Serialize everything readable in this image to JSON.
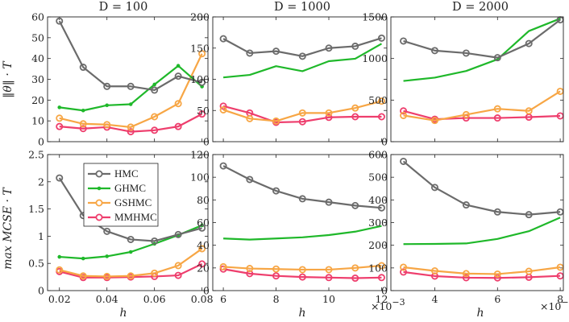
{
  "figure": {
    "method_colors": {
      "HMC": "#6b6b6b",
      "GHMC": "#1fb82a",
      "GSHMC": "#f7a645",
      "MMHMC": "#ee3e6d"
    },
    "legend_entries": [
      "HMC",
      "GHMC",
      "GSHMC",
      "MMHMC"
    ],
    "column_titles": [
      "D = 100",
      "D = 1000",
      "D = 2000"
    ],
    "row_ylabels": [
      "‖θ‖ · T",
      "max MCSE · T"
    ],
    "xlabel": "h",
    "x_exponent_label": "×10",
    "x_exponent_power": "−3"
  },
  "chart_data": [
    {
      "type": "line",
      "id": "top-d100",
      "title": "D = 100",
      "xlabel": "",
      "ylabel": "‖θ‖ · T",
      "xlim": [
        0.015,
        0.0825
      ],
      "ylim": [
        0,
        60
      ],
      "xticks": [
        0.02,
        0.04,
        0.06,
        0.08
      ],
      "xtick_labels": [],
      "yticks": [
        0,
        10,
        20,
        30,
        40,
        50,
        60
      ],
      "ytick_labels": [
        "0",
        "10",
        "20",
        "30",
        "40",
        "50",
        "60"
      ],
      "x": [
        0.02,
        0.03,
        0.04,
        0.05,
        0.06,
        0.07,
        0.08
      ],
      "series": [
        {
          "name": "HMC",
          "values": [
            58.0,
            35.8,
            26.6,
            26.6,
            24.8,
            31.5,
            28.5
          ]
        },
        {
          "name": "GHMC",
          "values": [
            16.5,
            15.0,
            17.5,
            18.0,
            27.5,
            36.5,
            26.5
          ]
        },
        {
          "name": "GSHMC",
          "values": [
            11.3,
            8.6,
            8.2,
            7.0,
            12.0,
            18.3,
            42.3
          ]
        },
        {
          "name": "MMHMC",
          "values": [
            7.3,
            6.3,
            7.0,
            4.8,
            5.5,
            7.3,
            13.3
          ]
        }
      ]
    },
    {
      "type": "line",
      "id": "top-d1000",
      "title": "D = 1000",
      "xlabel": "",
      "ylabel": "",
      "xlim": [
        5.6,
        12.2
      ],
      "ylim": [
        0,
        200
      ],
      "xticks": [
        6,
        8,
        10,
        12
      ],
      "xtick_labels": [],
      "yticks": [
        0,
        50,
        100,
        150,
        200
      ],
      "ytick_labels": [
        "0",
        "50",
        "100",
        "150",
        "200"
      ],
      "x": [
        6,
        7,
        8,
        9,
        10,
        11,
        12
      ],
      "series": [
        {
          "name": "HMC",
          "values": [
            165,
            142,
            145,
            137,
            150,
            153,
            166
          ]
        },
        {
          "name": "GHMC",
          "values": [
            103,
            107,
            121,
            113,
            129,
            133,
            157
          ]
        },
        {
          "name": "GSHMC",
          "values": [
            51,
            37,
            33,
            46,
            46,
            54,
            65
          ]
        },
        {
          "name": "MMHMC",
          "values": [
            57,
            46,
            31,
            32,
            39,
            40,
            40
          ]
        }
      ]
    },
    {
      "type": "line",
      "id": "top-d2000",
      "title": "D = 2000",
      "xlabel": "",
      "ylabel": "",
      "xlim": [
        2.6,
        8.1
      ],
      "ylim": [
        0,
        1500
      ],
      "xticks": [
        4,
        6,
        8
      ],
      "xtick_labels": [],
      "yticks": [
        0,
        500,
        1000,
        1500
      ],
      "ytick_labels": [
        "0",
        "500",
        "1000",
        "1500"
      ],
      "x": [
        3,
        4,
        5,
        6,
        7,
        8
      ],
      "series": [
        {
          "name": "HMC",
          "values": [
            1210,
            1095,
            1065,
            1010,
            1180,
            1465
          ]
        },
        {
          "name": "GHMC",
          "values": [
            730,
            770,
            850,
            990,
            1330,
            1480
          ]
        },
        {
          "name": "GSHMC",
          "values": [
            315,
            255,
            325,
            395,
            370,
            605
          ]
        },
        {
          "name": "MMHMC",
          "values": [
            370,
            270,
            285,
            285,
            295,
            310
          ]
        }
      ]
    },
    {
      "type": "line",
      "id": "bottom-d100",
      "title": "",
      "xlabel": "h",
      "ylabel": "max MCSE · T",
      "xlim": [
        0.015,
        0.0825
      ],
      "ylim": [
        0,
        2.5
      ],
      "xticks": [
        0.02,
        0.04,
        0.06,
        0.08
      ],
      "xtick_labels": [
        "0.02",
        "0.04",
        "0.06",
        "0.08"
      ],
      "yticks": [
        0,
        0.5,
        1,
        1.5,
        2,
        2.5
      ],
      "ytick_labels": [
        "0",
        "0.5",
        "1",
        "1.5",
        "2",
        "2.5"
      ],
      "x": [
        0.02,
        0.03,
        0.04,
        0.05,
        0.06,
        0.07,
        0.08
      ],
      "series": [
        {
          "name": "HMC",
          "values": [
            2.07,
            1.38,
            1.09,
            0.94,
            0.91,
            1.03,
            1.15
          ]
        },
        {
          "name": "GHMC",
          "values": [
            0.62,
            0.59,
            0.63,
            0.71,
            0.86,
            1.02,
            1.2
          ]
        },
        {
          "name": "GSHMC",
          "values": [
            0.38,
            0.27,
            0.26,
            0.27,
            0.32,
            0.46,
            0.77
          ]
        },
        {
          "name": "MMHMC",
          "values": [
            0.35,
            0.24,
            0.24,
            0.25,
            0.26,
            0.28,
            0.49
          ]
        }
      ]
    },
    {
      "type": "line",
      "id": "bottom-d1000",
      "title": "",
      "xlabel": "h",
      "ylabel": "",
      "xlim": [
        5.6,
        12.2
      ],
      "ylim": [
        0,
        120
      ],
      "xticks": [
        6,
        8,
        10,
        12
      ],
      "xtick_labels": [
        "6",
        "8",
        "10",
        "12"
      ],
      "yticks": [
        0,
        20,
        40,
        60,
        80,
        100,
        120
      ],
      "ytick_labels": [
        "0",
        "20",
        "40",
        "60",
        "80",
        "100",
        "120"
      ],
      "x": [
        6,
        7,
        8,
        9,
        10,
        11,
        12
      ],
      "x_exponent": "×10−3",
      "series": [
        {
          "name": "HMC",
          "values": [
            110,
            98,
            88,
            81,
            78,
            75,
            73
          ]
        },
        {
          "name": "GHMC",
          "values": [
            46,
            45,
            46,
            47,
            49,
            52,
            57
          ]
        },
        {
          "name": "GSHMC",
          "values": [
            21,
            19.5,
            19,
            18.5,
            18.5,
            20,
            22
          ]
        },
        {
          "name": "MMHMC",
          "values": [
            19,
            15,
            13,
            12,
            11.5,
            11,
            11.5
          ]
        }
      ]
    },
    {
      "type": "line",
      "id": "bottom-d2000",
      "title": "",
      "xlabel": "h",
      "ylabel": "",
      "xlim": [
        2.6,
        8.1
      ],
      "ylim": [
        0,
        600
      ],
      "xticks": [
        4,
        6,
        8
      ],
      "xtick_labels": [
        "4",
        "6",
        "8"
      ],
      "yticks": [
        0,
        100,
        200,
        300,
        400,
        500,
        600
      ],
      "ytick_labels": [
        "0",
        "100",
        "200",
        "300",
        "400",
        "500",
        "600"
      ],
      "x": [
        3,
        4,
        5,
        6,
        7,
        8
      ],
      "x_exponent": "×10−3",
      "series": [
        {
          "name": "HMC",
          "values": [
            570,
            455,
            378,
            347,
            335,
            347
          ]
        },
        {
          "name": "GHMC",
          "values": [
            205,
            206,
            208,
            228,
            262,
            322
          ]
        },
        {
          "name": "GSHMC",
          "values": [
            103,
            87,
            75,
            73,
            85,
            103
          ]
        },
        {
          "name": "MMHMC",
          "values": [
            82,
            64,
            57,
            56,
            59,
            65
          ]
        }
      ]
    }
  ]
}
